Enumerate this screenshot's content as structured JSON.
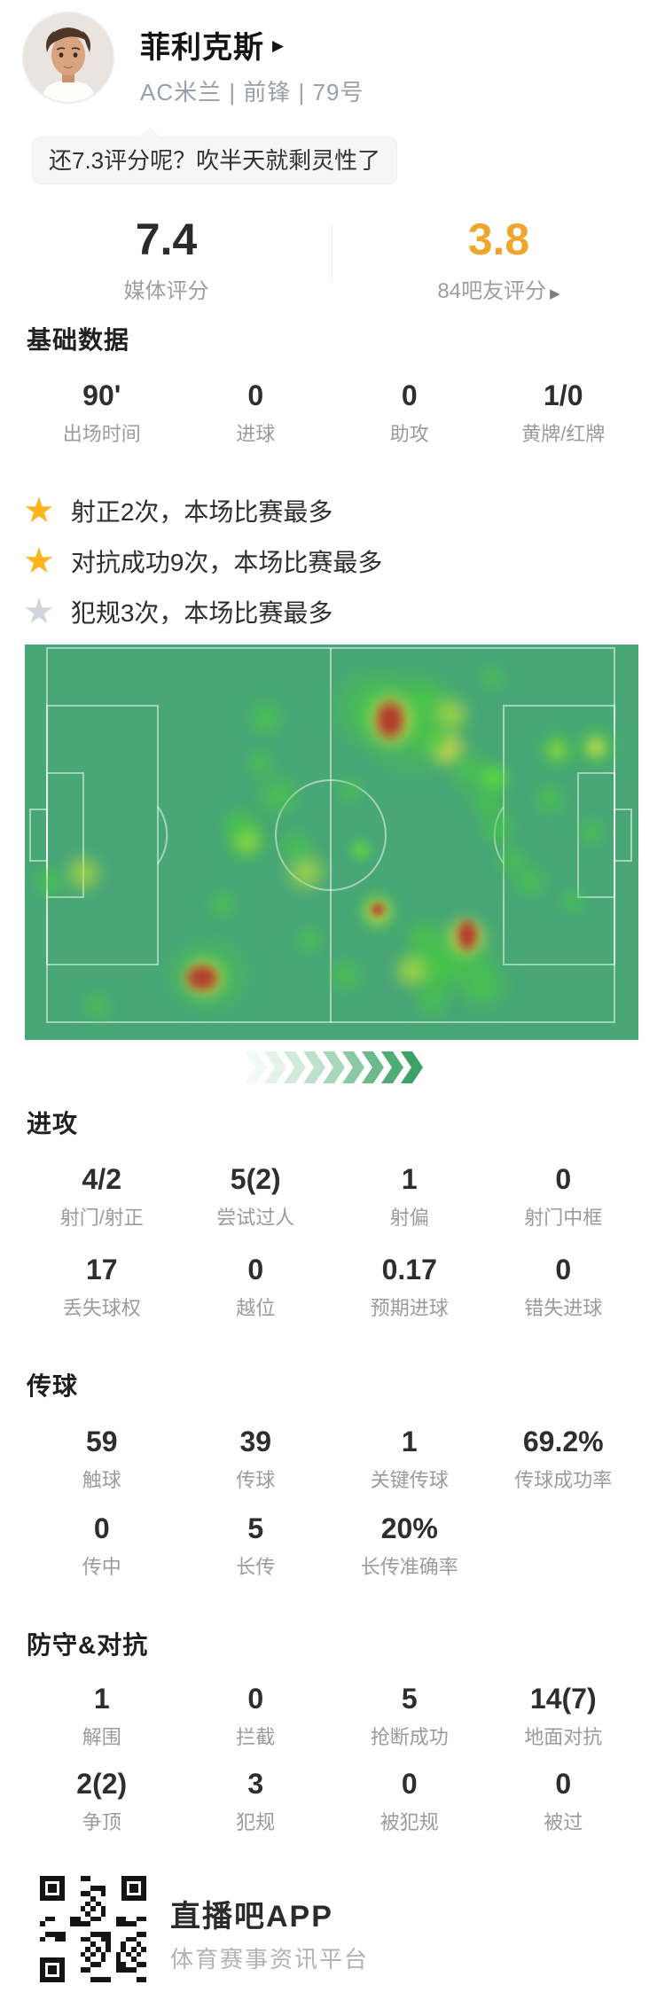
{
  "header": {
    "name": "菲利克斯",
    "name_arrow": "▶",
    "meta": "AC米兰 | 前锋 | 79号"
  },
  "quote": {
    "text": "还7.3评分呢？吹半天就剩灵性了"
  },
  "ratings": {
    "left": {
      "value": "7.4",
      "label": "媒体评分"
    },
    "right": {
      "value": "3.8",
      "label": "84吧友评分",
      "arrow": "▶",
      "accent_color": "#f0a62c"
    }
  },
  "sections": {
    "basic": {
      "title": "基础数据",
      "items": [
        {
          "v": "90'",
          "l": "出场时间"
        },
        {
          "v": "0",
          "l": "进球"
        },
        {
          "v": "0",
          "l": "助攻"
        },
        {
          "v": "1/0",
          "l": "黄牌/红牌"
        }
      ]
    },
    "highlights": {
      "gold_color": "#ffb41d",
      "gray_color": "#cfd5da",
      "items": [
        {
          "icon": "star-gold",
          "text": "射正2次，本场比赛最多"
        },
        {
          "icon": "star-gold",
          "text": "对抗成功9次，本场比赛最多"
        },
        {
          "icon": "star-gray",
          "text": "犯规3次，本场比赛最多"
        }
      ]
    },
    "attack": {
      "title": "进攻",
      "rows": [
        [
          {
            "v": "4/2",
            "l": "射门/射正"
          },
          {
            "v": "5(2)",
            "l": "尝试过人"
          },
          {
            "v": "1",
            "l": "射偏"
          },
          {
            "v": "0",
            "l": "射门中框"
          }
        ],
        [
          {
            "v": "17",
            "l": "丢失球权"
          },
          {
            "v": "0",
            "l": "越位"
          },
          {
            "v": "0.17",
            "l": "预期进球"
          },
          {
            "v": "0",
            "l": "错失进球"
          }
        ]
      ]
    },
    "passing": {
      "title": "传球",
      "rows": [
        [
          {
            "v": "59",
            "l": "触球"
          },
          {
            "v": "39",
            "l": "传球"
          },
          {
            "v": "1",
            "l": "关键传球"
          },
          {
            "v": "69.2%",
            "l": "传球成功率"
          }
        ],
        [
          {
            "v": "0",
            "l": "传中"
          },
          {
            "v": "5",
            "l": "长传"
          },
          {
            "v": "20%",
            "l": "长传准确率"
          },
          {
            "v": "",
            "l": ""
          }
        ]
      ]
    },
    "defense": {
      "title": "防守&对抗",
      "rows": [
        [
          {
            "v": "1",
            "l": "解围"
          },
          {
            "v": "0",
            "l": "拦截"
          },
          {
            "v": "5",
            "l": "抢断成功"
          },
          {
            "v": "14(7)",
            "l": "地面对抗"
          }
        ],
        [
          {
            "v": "2(2)",
            "l": "争顶"
          },
          {
            "v": "3",
            "l": "犯规"
          },
          {
            "v": "0",
            "l": "被犯规"
          },
          {
            "v": "0",
            "l": "被过"
          }
        ]
      ]
    }
  },
  "heatmap": {
    "pitch_color": "#48a677",
    "blobs": [
      [
        63.2,
        20.0,
        140,
        140,
        "g"
      ],
      [
        56.6,
        16.4,
        110,
        110,
        "g"
      ],
      [
        65.0,
        14.1,
        56,
        56,
        "g"
      ],
      [
        69.4,
        17.7,
        52,
        52,
        "gy"
      ],
      [
        68.9,
        26.5,
        52,
        52,
        "y"
      ],
      [
        66.8,
        24.2,
        48,
        48,
        "g"
      ],
      [
        72.5,
        32.1,
        60,
        60,
        "g"
      ],
      [
        76.4,
        33.9,
        44,
        44,
        "gb"
      ],
      [
        75.4,
        39.9,
        52,
        52,
        "g"
      ],
      [
        77.2,
        46.6,
        48,
        48,
        "g"
      ],
      [
        76.2,
        8.5,
        36,
        36,
        "g"
      ],
      [
        59.7,
        19.1,
        68,
        74,
        "y"
      ],
      [
        59.5,
        19.1,
        42,
        54,
        "r"
      ],
      [
        39.3,
        18.6,
        52,
        52,
        "g"
      ],
      [
        41.2,
        38.1,
        60,
        60,
        "g"
      ],
      [
        38.4,
        30.0,
        40,
        40,
        "g"
      ],
      [
        36.1,
        49.6,
        62,
        62,
        "g"
      ],
      [
        36.1,
        49.6,
        40,
        40,
        "gy"
      ],
      [
        45.8,
        57.4,
        56,
        56,
        "gy"
      ],
      [
        44.4,
        51.1,
        48,
        48,
        "g"
      ],
      [
        32.2,
        65.7,
        40,
        40,
        "g"
      ],
      [
        35.0,
        45.5,
        48,
        48,
        "g"
      ],
      [
        9.5,
        57.8,
        52,
        52,
        "gy"
      ],
      [
        4.0,
        60.1,
        44,
        44,
        "g"
      ],
      [
        29.9,
        83.6,
        110,
        100,
        "g"
      ],
      [
        29.2,
        84.3,
        60,
        56,
        "y"
      ],
      [
        28.9,
        84.3,
        46,
        38,
        "r"
      ],
      [
        11.8,
        91.5,
        40,
        40,
        "g"
      ],
      [
        46.4,
        74.7,
        40,
        40,
        "g"
      ],
      [
        52.3,
        83.6,
        48,
        48,
        "g"
      ],
      [
        57.5,
        67.5,
        60,
        60,
        "g"
      ],
      [
        57.5,
        67.5,
        40,
        40,
        "y"
      ],
      [
        57.5,
        67.0,
        20,
        20,
        "r"
      ],
      [
        54.8,
        52.0,
        32,
        32,
        "gb"
      ],
      [
        70.4,
        79.1,
        110,
        100,
        "g"
      ],
      [
        66.5,
        81.8,
        72,
        72,
        "g"
      ],
      [
        74.7,
        86.3,
        68,
        68,
        "g"
      ],
      [
        65.0,
        74.2,
        56,
        56,
        "g"
      ],
      [
        72.0,
        74.0,
        56,
        56,
        "y"
      ],
      [
        72.1,
        73.5,
        30,
        44,
        "r"
      ],
      [
        63.2,
        82.5,
        52,
        52,
        "gy"
      ],
      [
        66.3,
        89.9,
        48,
        48,
        "g"
      ],
      [
        79.5,
        54.9,
        44,
        44,
        "g"
      ],
      [
        82.4,
        59.9,
        48,
        48,
        "g"
      ],
      [
        89.3,
        64.8,
        36,
        36,
        "g"
      ],
      [
        86.7,
        26.7,
        56,
        56,
        "g"
      ],
      [
        86.7,
        26.7,
        28,
        28,
        "gy"
      ],
      [
        93.1,
        26.0,
        60,
        60,
        "g"
      ],
      [
        93.1,
        26.0,
        32,
        32,
        "y"
      ],
      [
        92.5,
        47.3,
        40,
        40,
        "g"
      ],
      [
        85.5,
        39.0,
        44,
        44,
        "g"
      ],
      [
        53.0,
        36.8,
        36,
        36,
        "g"
      ]
    ],
    "chevron_colors": [
      "#f4faf6",
      "#e4f2e9",
      "#d2eadb",
      "#bfe1cc",
      "#a8d7bb",
      "#8bc9a4",
      "#6cba8b",
      "#4fac74",
      "#3da266"
    ]
  },
  "footer": {
    "app": "直播吧APP",
    "tagline": "体育赛事资讯平台"
  }
}
